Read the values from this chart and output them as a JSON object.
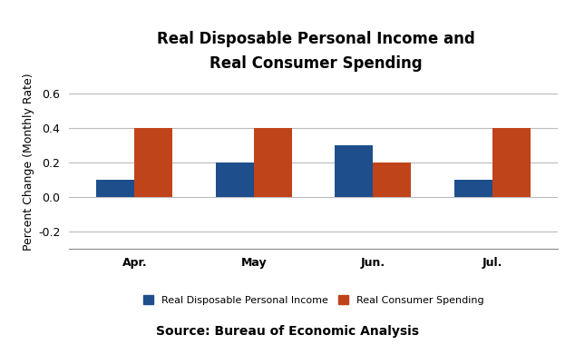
{
  "title_line1": "Real Disposable Personal Income and",
  "title_line2": "Real Consumer Spending",
  "categories": [
    "Apr.",
    "May",
    "Jun.",
    "Jul."
  ],
  "income_values": [
    0.1,
    0.2,
    0.3,
    0.1
  ],
  "spending_values": [
    0.4,
    0.4,
    0.2,
    0.4
  ],
  "income_color": "#1F4E8C",
  "spending_color": "#C0441A",
  "ylabel": "Percent Change (Monthly Rate)",
  "ylim": [
    -0.3,
    0.7
  ],
  "yticks": [
    -0.2,
    0.0,
    0.2,
    0.4,
    0.6
  ],
  "legend_income": "Real Disposable Personal Income",
  "legend_spending": "Real Consumer Spending",
  "source_text": "Source: Bureau of Economic Analysis",
  "background_color": "#ffffff",
  "bar_width": 0.32,
  "title_fontsize": 12,
  "label_fontsize": 9,
  "tick_fontsize": 9,
  "legend_fontsize": 8,
  "source_fontsize": 10
}
